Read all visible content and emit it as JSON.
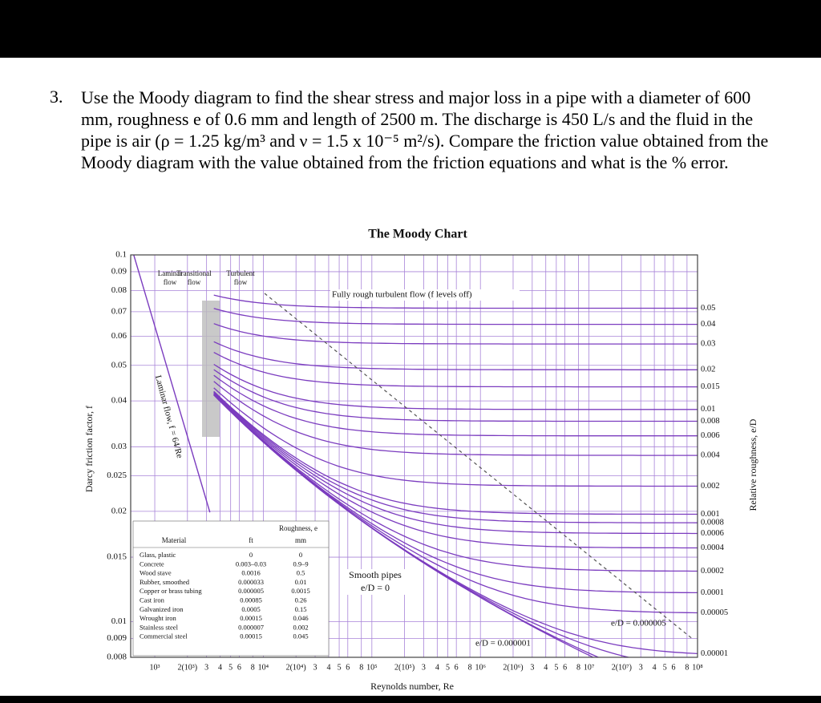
{
  "question": {
    "number": "3.",
    "text": "Use the Moody diagram to find the shear stress and major loss in a pipe with a diameter of 600 mm, roughness e of 0.6 mm and length of 2500 m. The discharge is 450 L/s and the fluid in the pipe is air (ρ = 1.25 kg/m³ and ν = 1.5 x 10⁻⁵ m²/s). Compare the friction value obtained from the Moody diagram with the value obtained from the friction equations and what is the % error."
  },
  "chart_data": {
    "type": "moody",
    "title": "The Moody Chart",
    "xlabel": "Reynolds number, Re",
    "ylabel": "Darcy friction factor, f",
    "y2label": "Relative roughness, e/D",
    "log_x": true,
    "log_y": true,
    "grid": true,
    "color": "#7b3cbf",
    "grid_color": "#a884d8",
    "xlim": [
      600,
      100000000
    ],
    "ylim": [
      0.008,
      0.1
    ],
    "xticks": [
      {
        "value": 1000,
        "label": "10³"
      },
      {
        "value": 2000,
        "label": "2(10³)"
      },
      {
        "value": 3000,
        "label": "3"
      },
      {
        "value": 4000,
        "label": "4"
      },
      {
        "value": 5000,
        "label": "5"
      },
      {
        "value": 6000,
        "label": "6"
      },
      {
        "value": 8000,
        "label": "8"
      },
      {
        "value": 10000,
        "label": "10⁴"
      },
      {
        "value": 20000,
        "label": "2(10⁴)"
      },
      {
        "value": 30000,
        "label": "3"
      },
      {
        "value": 40000,
        "label": "4"
      },
      {
        "value": 50000,
        "label": "5"
      },
      {
        "value": 60000,
        "label": "6"
      },
      {
        "value": 80000,
        "label": "8"
      },
      {
        "value": 100000,
        "label": "10⁵"
      },
      {
        "value": 200000,
        "label": "2(10⁵)"
      },
      {
        "value": 300000,
        "label": "3"
      },
      {
        "value": 400000,
        "label": "4"
      },
      {
        "value": 500000,
        "label": "5"
      },
      {
        "value": 600000,
        "label": "6"
      },
      {
        "value": 800000,
        "label": "8"
      },
      {
        "value": 1000000,
        "label": "10⁶"
      },
      {
        "value": 2000000,
        "label": "2(10⁶)"
      },
      {
        "value": 3000000,
        "label": "3"
      },
      {
        "value": 4000000,
        "label": "4"
      },
      {
        "value": 5000000,
        "label": "5"
      },
      {
        "value": 6000000,
        "label": "6"
      },
      {
        "value": 8000000,
        "label": "8"
      },
      {
        "value": 10000000,
        "label": "10⁷"
      },
      {
        "value": 20000000,
        "label": "2(10⁷)"
      },
      {
        "value": 30000000,
        "label": "3"
      },
      {
        "value": 40000000,
        "label": "4"
      },
      {
        "value": 50000000,
        "label": "5"
      },
      {
        "value": 60000000,
        "label": "6"
      },
      {
        "value": 80000000,
        "label": "8"
      },
      {
        "value": 100000000,
        "label": "10⁸"
      }
    ],
    "yticks": [
      0.008,
      0.009,
      0.01,
      0.015,
      0.02,
      0.025,
      0.03,
      0.04,
      0.05,
      0.06,
      0.07,
      0.08,
      0.09,
      0.1
    ],
    "roughness": [
      0.05,
      0.04,
      0.03,
      0.02,
      0.015,
      0.01,
      0.008,
      0.006,
      0.004,
      0.002,
      0.001,
      0.0008,
      0.0006,
      0.0004,
      0.0002,
      0.0001,
      5e-05,
      1e-05
    ],
    "extra_curves": [
      {
        "value": 5e-06,
        "label": "e/D = 0.000005"
      },
      {
        "value": 1e-06,
        "label": "e/D = 0.000001"
      },
      {
        "value": 0,
        "label": "e/D = 0"
      }
    ],
    "smooth_label": "Smooth pipes",
    "laminar": {
      "label": "Laminar flow, f = 64/Re",
      "coefficient": 64
    },
    "regions": [
      "Laminar flow",
      "Transitional flow",
      "Turbulent flow"
    ],
    "fully_rough_label": "Fully rough turbulent flow (f levels off)",
    "table": {
      "title": "Roughness, e",
      "header": [
        "Material",
        "ft",
        "mm"
      ],
      "rows": [
        [
          "Glass, plastic",
          "0",
          "0"
        ],
        [
          "Concrete",
          "0.003–0.03",
          "0.9–9"
        ],
        [
          "Wood stave",
          "0.0016",
          "0.5"
        ],
        [
          "Rubber, smoothed",
          "0.000033",
          "0.01"
        ],
        [
          "Copper or brass tubing",
          "0.000005",
          "0.0015"
        ],
        [
          "Cast iron",
          "0.00085",
          "0.26"
        ],
        [
          "Galvanized iron",
          "0.0005",
          "0.15"
        ],
        [
          "Wrought iron",
          "0.00015",
          "0.046"
        ],
        [
          "Stainless steel",
          "0.000007",
          "0.002"
        ],
        [
          "Commercial steel",
          "0.00015",
          "0.045"
        ]
      ]
    }
  }
}
